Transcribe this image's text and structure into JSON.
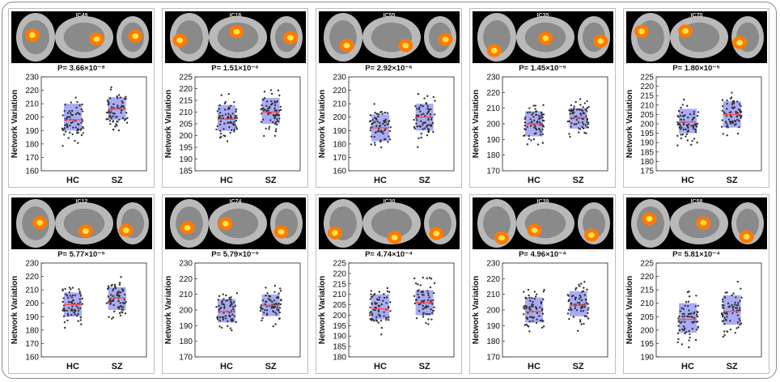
{
  "chart_data": [
    {
      "type": "scatter",
      "component": "IC49",
      "p_value": "P= 3.66×10⁻⁸",
      "ylabel": "Network Variation",
      "categories": [
        "HC",
        "SZ"
      ],
      "ylim": [
        160,
        230
      ],
      "yticks": [
        160,
        170,
        180,
        190,
        200,
        210,
        220,
        230
      ],
      "box_bounds": [
        [
          190,
          210
        ],
        [
          198,
          215
        ]
      ],
      "medians": [
        198,
        206
      ],
      "colors": {
        "box": "#7b7ff0",
        "median": "#ff4a4a",
        "points": "#333333"
      }
    },
    {
      "type": "scatter",
      "component": "IC16",
      "p_value": "P= 1.51×10⁻⁶",
      "ylabel": "Network Variation",
      "categories": [
        "HC",
        "SZ"
      ],
      "ylim": [
        185,
        225
      ],
      "yticks": [
        185,
        190,
        195,
        200,
        205,
        210,
        215,
        220,
        225
      ],
      "box_bounds": [
        [
          202,
          213
        ],
        [
          205,
          216
        ]
      ],
      "medians": [
        207,
        210
      ],
      "colors": {
        "box": "#7b7ff0",
        "median": "#ff4a4a",
        "points": "#333333"
      }
    },
    {
      "type": "scatter",
      "component": "IC55",
      "p_value": "P= 2.92×10⁻⁶",
      "ylabel": "Network Variation",
      "categories": [
        "HC",
        "SZ"
      ],
      "ylim": [
        160,
        230
      ],
      "yticks": [
        160,
        170,
        180,
        190,
        200,
        210,
        220,
        230
      ],
      "box_bounds": [
        [
          182,
          202
        ],
        [
          190,
          210
        ]
      ],
      "medians": [
        192,
        200
      ],
      "colors": {
        "box": "#7b7ff0",
        "median": "#ff4a4a",
        "points": "#333333"
      }
    },
    {
      "type": "scatter",
      "component": "IC35",
      "p_value": "P= 1.45×10⁻⁵",
      "ylabel": "Network Variation",
      "categories": [
        "HC",
        "SZ"
      ],
      "ylim": [
        170,
        230
      ],
      "yticks": [
        170,
        180,
        190,
        200,
        210,
        220,
        230
      ],
      "box_bounds": [
        [
          192,
          208
        ],
        [
          197,
          210
        ]
      ],
      "medians": [
        200,
        204
      ],
      "colors": {
        "box": "#7b7ff0",
        "median": "#ff4a4a",
        "points": "#333333"
      }
    },
    {
      "type": "scatter",
      "component": "IC70",
      "p_value": "P= 1.80×10⁻⁵",
      "ylabel": "Network Variation",
      "categories": [
        "HC",
        "SZ"
      ],
      "ylim": [
        175,
        225
      ],
      "yticks": [
        175,
        180,
        185,
        190,
        195,
        200,
        205,
        210,
        215,
        220,
        225
      ],
      "box_bounds": [
        [
          195,
          208
        ],
        [
          198,
          212
        ]
      ],
      "medians": [
        201,
        205
      ],
      "colors": {
        "box": "#7b7ff0",
        "median": "#ff4a4a",
        "points": "#333333"
      }
    },
    {
      "type": "scatter",
      "component": "IC12",
      "p_value": "P= 5.77×10⁻⁵",
      "ylabel": "Network Variation",
      "categories": [
        "HC",
        "SZ"
      ],
      "ylim": [
        160,
        230
      ],
      "yticks": [
        160,
        170,
        180,
        190,
        200,
        210,
        220,
        230
      ],
      "box_bounds": [
        [
          190,
          208
        ],
        [
          195,
          212
        ]
      ],
      "medians": [
        199,
        204
      ],
      "colors": {
        "box": "#7b7ff0",
        "median": "#ff4a4a",
        "points": "#333333"
      }
    },
    {
      "type": "scatter",
      "component": "IC74",
      "p_value": "P= 5.79×10⁻⁵",
      "ylabel": "Network Variation",
      "categories": [
        "HC",
        "SZ"
      ],
      "ylim": [
        170,
        230
      ],
      "yticks": [
        170,
        180,
        190,
        200,
        210,
        220,
        230
      ],
      "box_bounds": [
        [
          192,
          207
        ],
        [
          196,
          210
        ]
      ],
      "medians": [
        199,
        203
      ],
      "colors": {
        "box": "#7b7ff0",
        "median": "#ff4a4a",
        "points": "#333333"
      }
    },
    {
      "type": "scatter",
      "component": "IC30",
      "p_value": "P= 4.74×10⁻⁴",
      "ylabel": "Network Variation",
      "categories": [
        "HC",
        "SZ"
      ],
      "ylim": [
        180,
        225
      ],
      "yticks": [
        180,
        185,
        190,
        195,
        200,
        205,
        210,
        215,
        220,
        225
      ],
      "box_bounds": [
        [
          198,
          210
        ],
        [
          200,
          212
        ]
      ],
      "medians": [
        203,
        206
      ],
      "colors": {
        "box": "#7b7ff0",
        "median": "#ff4a4a",
        "points": "#333333"
      }
    },
    {
      "type": "scatter",
      "component": "IC39",
      "p_value": "P= 4.96×10⁻⁴",
      "ylabel": "Network Variation",
      "categories": [
        "HC",
        "SZ"
      ],
      "ylim": [
        170,
        230
      ],
      "yticks": [
        170,
        180,
        190,
        200,
        210,
        220,
        230
      ],
      "box_bounds": [
        [
          192,
          208
        ],
        [
          196,
          212
        ]
      ],
      "medians": [
        199,
        203
      ],
      "colors": {
        "box": "#7b7ff0",
        "median": "#ff4a4a",
        "points": "#333333"
      }
    },
    {
      "type": "scatter",
      "component": "IC58",
      "p_value": "P= 5.81×10⁻⁴",
      "ylabel": "Network Variation",
      "categories": [
        "HC",
        "SZ"
      ],
      "ylim": [
        190,
        225
      ],
      "yticks": [
        190,
        195,
        200,
        205,
        210,
        215,
        220,
        225
      ],
      "box_bounds": [
        [
          199,
          210
        ],
        [
          202,
          213
        ]
      ],
      "medians": [
        204,
        207
      ],
      "colors": {
        "box": "#7b7ff0",
        "median": "#ff4a4a",
        "points": "#333333"
      }
    }
  ]
}
